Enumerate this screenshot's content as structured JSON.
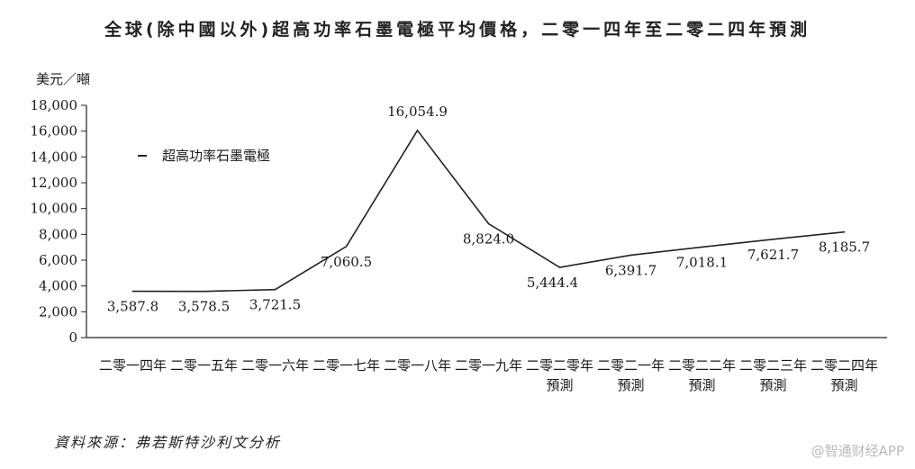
{
  "chart_data": {
    "type": "line",
    "title": "全球(除中國以外)超高功率石墨電極平均價格，二零一四年至二零二四年預測",
    "ylabel": "美元／噸",
    "xlabel": "",
    "ylim": [
      0,
      18000
    ],
    "yticks": [
      0,
      2000,
      4000,
      6000,
      8000,
      10000,
      12000,
      14000,
      16000,
      18000
    ],
    "ytick_labels": [
      "0",
      "2,000",
      "4,000",
      "6,000",
      "8,000",
      "10,000",
      "12,000",
      "14,000",
      "16,000",
      "18,000"
    ],
    "categories": [
      [
        "二零一四年"
      ],
      [
        "二零一五年"
      ],
      [
        "二零一六年"
      ],
      [
        "二零一七年"
      ],
      [
        "二零一八年"
      ],
      [
        "二零一九年"
      ],
      [
        "二零二零年",
        "預測"
      ],
      [
        "二零二一年",
        "預測"
      ],
      [
        "二零二二年",
        "預測"
      ],
      [
        "二零二三年",
        "預測"
      ],
      [
        "二零二四年",
        "預測"
      ]
    ],
    "series": [
      {
        "name": "超高功率石墨電極",
        "values": [
          3587.8,
          3578.5,
          3721.5,
          7060.5,
          16054.9,
          8824.0,
          5444.4,
          6391.7,
          7018.1,
          7621.7,
          8185.7
        ]
      }
    ],
    "data_labels": [
      "3,587.8",
      "3,578.5",
      "3,721.5",
      "7,060.5",
      "16,054.9",
      "8,824.0",
      "5,444.4",
      "6,391.7",
      "7,018.1",
      "7,621.7",
      "8,185.7"
    ],
    "legend_position": "top-left",
    "grid": false
  },
  "source": "資料來源：弗若斯特沙利文分析",
  "watermark": "@智通财经APP",
  "colors": {
    "line": "#222222",
    "axis": "#222222"
  }
}
